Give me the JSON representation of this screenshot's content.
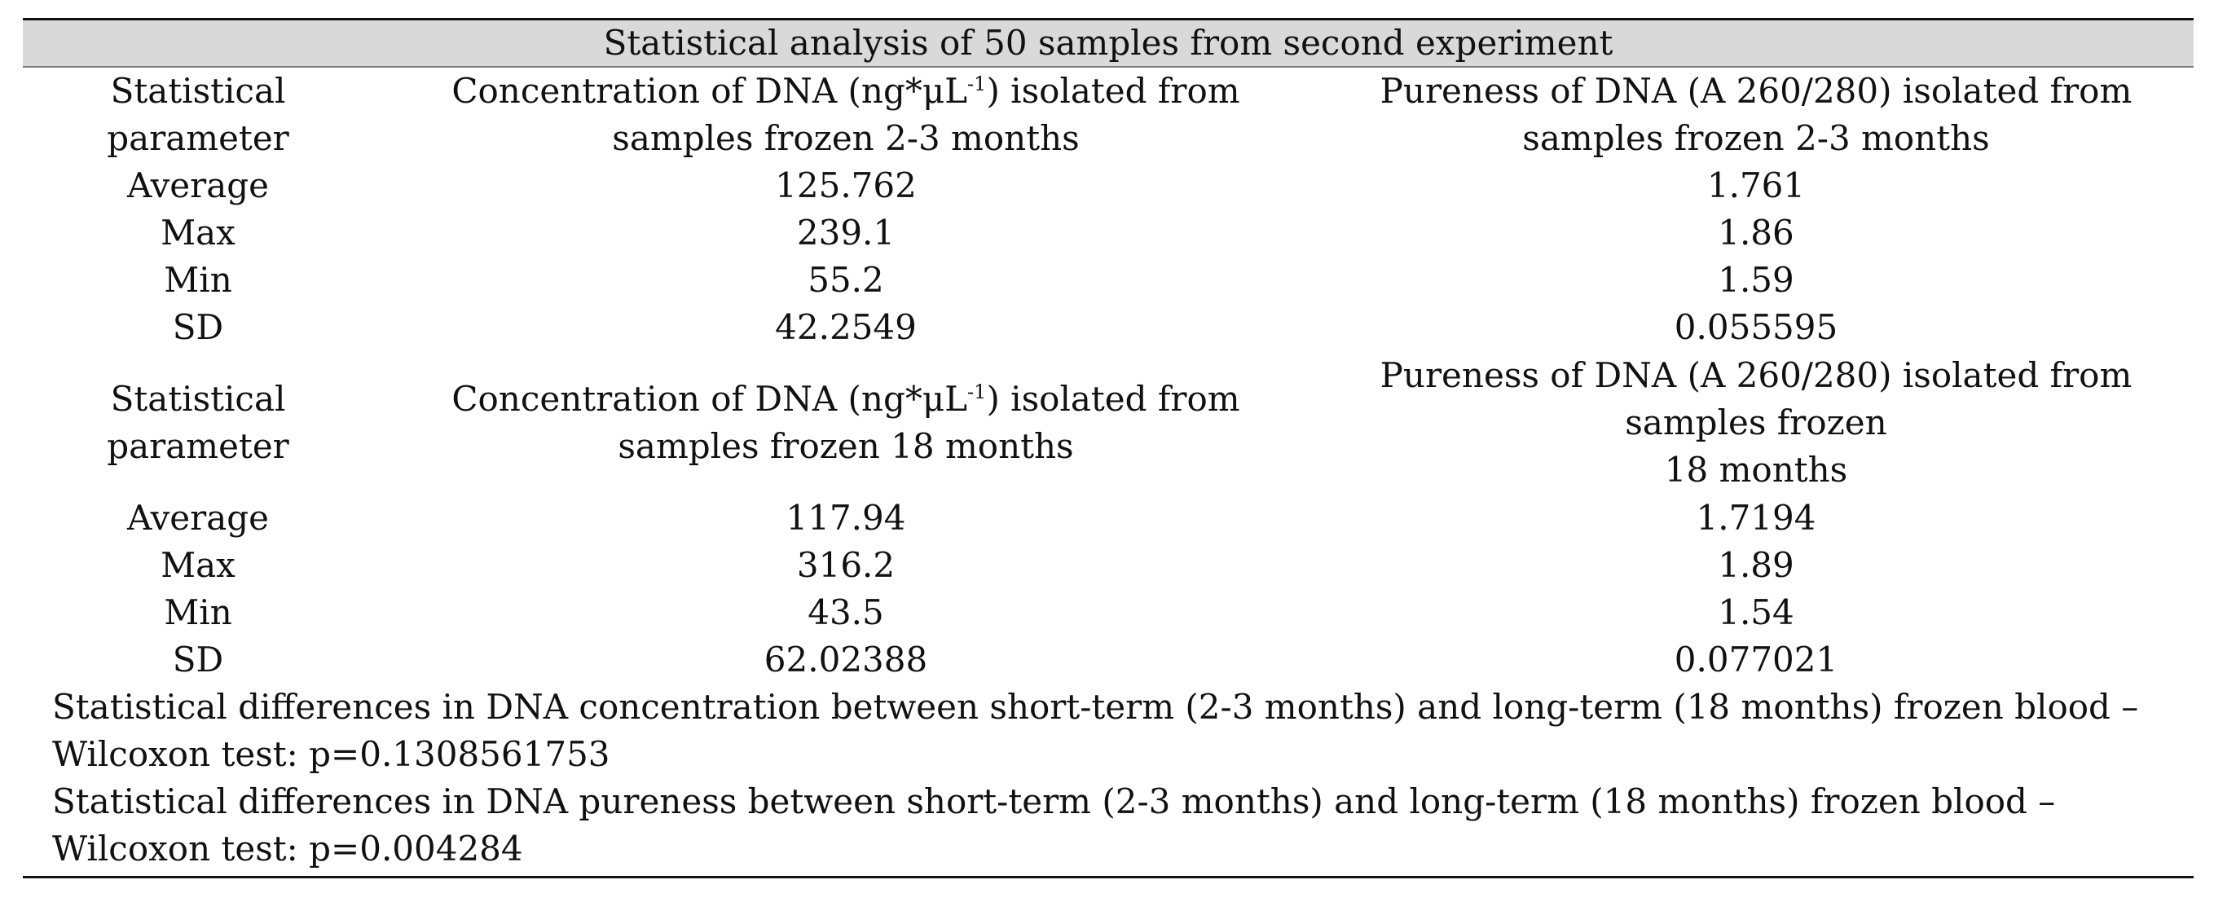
{
  "table": {
    "title": "Statistical analysis of 50 samples from second experiment",
    "block1": {
      "header": {
        "param_line1": "Statistical",
        "param_line2": "parameter",
        "conc_line1_pre": "Concentration of DNA (ng*μL",
        "conc_sup": "-1",
        "conc_line1_post": ") isolated from",
        "conc_line2": "samples frozen 2-3 months",
        "pure_line1": "Pureness of DNA (A 260/280) isolated from",
        "pure_line2": "samples frozen 2-3 months"
      },
      "rows": [
        {
          "parameter": "Average",
          "concentration": "125.762",
          "pureness": "1.761"
        },
        {
          "parameter": "Max",
          "concentration": "239.1",
          "pureness": "1.86"
        },
        {
          "parameter": "Min",
          "concentration": "55.2",
          "pureness": "1.59"
        },
        {
          "parameter": "SD",
          "concentration": "42.2549",
          "pureness": "0.055595"
        }
      ]
    },
    "block2": {
      "header": {
        "param_line1": "Statistical",
        "param_line2": "parameter",
        "conc_line1_pre": "Concentration of DNA (ng*μL",
        "conc_sup": "-1",
        "conc_line1_post": ") isolated from",
        "conc_line2": "samples frozen 18 months",
        "pure_line1": "Pureness of DNA (A 260/280) isolated from",
        "pure_line2": "samples frozen",
        "pure_line3": "18 months"
      },
      "rows": [
        {
          "parameter": "Average",
          "concentration": "117.94",
          "pureness": "1.7194"
        },
        {
          "parameter": "Max",
          "concentration": "316.2",
          "pureness": "1.89"
        },
        {
          "parameter": "Min",
          "concentration": "43.5",
          "pureness": "1.54"
        },
        {
          "parameter": "SD",
          "concentration": "62.02388",
          "pureness": "0.077021"
        }
      ]
    },
    "notes": {
      "note1_line1": "Statistical differences in DNA concentration between short-term (2-3 months) and long-term (18 months) frozen blood –",
      "note1_line2": "Wilcoxon test: p=0.1308561753",
      "note2_line1": "Statistical differences in DNA pureness between short-term (2-3 months) and long-term (18 months) frozen blood –",
      "note2_line2": "Wilcoxon test: p=0.004284"
    }
  }
}
